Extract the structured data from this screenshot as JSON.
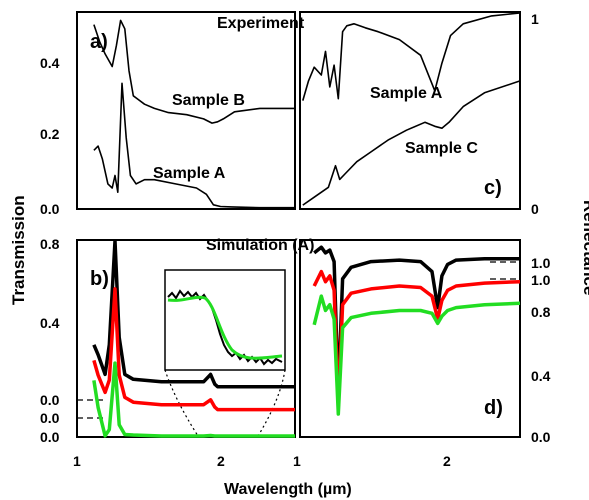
{
  "figure": {
    "ylabel_left": "Transmission",
    "ylabel_right": "Reflectance",
    "xlabel": "Wavelength (µm)",
    "title_top": "Experiment",
    "title_bottom": "Simulation (A)"
  },
  "colors": {
    "black": "#000000",
    "red": "#ff0000",
    "green": "#22dd22"
  },
  "chart_data": [
    {
      "panel": "a)",
      "type": "line",
      "xlabel": "",
      "ylabel": "Transmission",
      "ylim": [
        0,
        0.47
      ],
      "y_ticks": [
        "0.0",
        "0.2",
        "0.4"
      ],
      "series": [
        {
          "name": "Sample B",
          "x": [
            1.12,
            1.16,
            1.2,
            1.25,
            1.28,
            1.31,
            1.34,
            1.37,
            1.4,
            1.44,
            1.48,
            1.55,
            1.65,
            1.78,
            1.9,
            1.96,
            2.0,
            2.04,
            2.12,
            2.3,
            2.55
          ],
          "y": [
            0.44,
            0.4,
            0.37,
            0.34,
            0.39,
            0.45,
            0.43,
            0.33,
            0.27,
            0.26,
            0.25,
            0.24,
            0.23,
            0.225,
            0.215,
            0.205,
            0.208,
            0.215,
            0.232,
            0.24,
            0.24
          ]
        },
        {
          "name": "Sample A",
          "x": [
            1.12,
            1.15,
            1.18,
            1.22,
            1.25,
            1.27,
            1.29,
            1.32,
            1.35,
            1.38,
            1.42,
            1.48,
            1.55,
            1.7,
            1.85,
            1.92,
            1.97,
            2.02,
            2.1,
            2.3,
            2.55
          ],
          "y": [
            0.14,
            0.15,
            0.12,
            0.06,
            0.05,
            0.08,
            0.04,
            0.3,
            0.17,
            0.08,
            0.06,
            0.07,
            0.07,
            0.06,
            0.05,
            0.035,
            0.01,
            0.006,
            0.005,
            0.003,
            0.003
          ]
        }
      ]
    },
    {
      "panel": "c)",
      "type": "line",
      "xlabel": "",
      "ylabel": "Reflectance",
      "ylim": [
        0,
        1
      ],
      "y_ticks": [
        "0",
        "1"
      ],
      "series": [
        {
          "name": "Sample A",
          "x": [
            1.02,
            1.06,
            1.1,
            1.15,
            1.18,
            1.21,
            1.24,
            1.27,
            1.3,
            1.33,
            1.38,
            1.46,
            1.55,
            1.7,
            1.85,
            1.95,
            2.0,
            2.06,
            2.15,
            2.35,
            2.55
          ],
          "y": [
            0.55,
            0.65,
            0.72,
            0.68,
            0.8,
            0.62,
            0.73,
            0.56,
            0.9,
            0.93,
            0.94,
            0.92,
            0.9,
            0.86,
            0.78,
            0.6,
            0.74,
            0.88,
            0.94,
            0.98,
            1.0
          ]
        },
        {
          "name": "Sample C",
          "x": [
            1.02,
            1.1,
            1.2,
            1.25,
            1.28,
            1.32,
            1.4,
            1.5,
            1.62,
            1.75,
            1.88,
            1.95,
            2.0,
            2.05,
            2.15,
            2.3,
            2.55
          ],
          "y": [
            0.02,
            0.06,
            0.11,
            0.22,
            0.15,
            0.18,
            0.24,
            0.29,
            0.35,
            0.4,
            0.44,
            0.42,
            0.41,
            0.44,
            0.52,
            0.59,
            0.65
          ]
        }
      ]
    },
    {
      "panel": "b)",
      "type": "line",
      "xlabel": "Wavelength (µm)",
      "ylabel": "Transmission",
      "x_ticks": [
        "1",
        "2"
      ],
      "y_ticks": [
        "0.8",
        "0.4",
        "0.0",
        "0.0",
        "0.0"
      ],
      "series": [
        {
          "color": "black",
          "x": [
            1.12,
            1.15,
            1.2,
            1.23,
            1.27,
            1.3,
            1.34,
            1.4,
            1.6,
            1.9,
            1.95,
            1.98,
            2.0,
            2.05,
            2.2,
            2.55
          ],
          "y": [
            0.22,
            0.18,
            0.1,
            0.22,
            0.77,
            0.25,
            0.1,
            0.08,
            0.07,
            0.07,
            0.1,
            0.06,
            0.05,
            0.05,
            0.05,
            0.05
          ]
        },
        {
          "color": "red",
          "x": [
            1.12,
            1.15,
            1.2,
            1.23,
            1.27,
            1.3,
            1.34,
            1.4,
            1.6,
            1.9,
            1.95,
            1.98,
            2.0,
            2.05,
            2.2,
            2.55
          ],
          "y": [
            0.23,
            0.17,
            0.1,
            0.15,
            0.52,
            0.17,
            0.08,
            0.06,
            0.05,
            0.05,
            0.07,
            0.04,
            0.03,
            0.03,
            0.03,
            0.03
          ]
        },
        {
          "color": "green",
          "x": [
            1.12,
            1.15,
            1.2,
            1.23,
            1.27,
            1.3,
            1.34,
            1.4,
            1.6,
            1.9,
            1.95,
            1.98,
            2.0,
            2.05,
            2.2,
            2.55
          ],
          "y": [
            0.23,
            0.12,
            0.005,
            0.03,
            0.3,
            0.05,
            0.01,
            0.008,
            0.004,
            0.004,
            0.006,
            0.002,
            0.001,
            0.001,
            0.001,
            0.001
          ]
        }
      ]
    },
    {
      "panel": "d)",
      "type": "line",
      "xlabel": "Wavelength (µm)",
      "ylabel": "Reflectance",
      "x_ticks": [
        "1",
        "2"
      ],
      "y_ticks": [
        "1.0",
        "1.0",
        "0.8",
        "0.4",
        "0.0"
      ],
      "series": [
        {
          "color": "black",
          "x": [
            1.1,
            1.15,
            1.18,
            1.21,
            1.24,
            1.27,
            1.3,
            1.36,
            1.5,
            1.7,
            1.85,
            1.93,
            1.97,
            2.0,
            2.04,
            2.1,
            2.3,
            2.55
          ],
          "y": [
            1.28,
            1.32,
            1.28,
            1.3,
            1.22,
            0.3,
            1.1,
            1.18,
            1.22,
            1.23,
            1.22,
            1.15,
            0.9,
            1.12,
            1.2,
            1.23,
            1.24,
            1.24
          ]
        },
        {
          "color": "red",
          "x": [
            1.1,
            1.15,
            1.18,
            1.21,
            1.24,
            1.27,
            1.3,
            1.36,
            1.5,
            1.7,
            1.85,
            1.93,
            1.97,
            2.0,
            2.04,
            2.1,
            2.3,
            2.55
          ],
          "y": [
            1.05,
            1.15,
            1.08,
            1.12,
            1.02,
            0.22,
            0.92,
            1.0,
            1.03,
            1.05,
            1.04,
            0.98,
            0.82,
            0.95,
            1.02,
            1.05,
            1.07,
            1.08
          ]
        },
        {
          "color": "green",
          "x": [
            1.1,
            1.15,
            1.18,
            1.21,
            1.24,
            1.27,
            1.3,
            1.36,
            1.5,
            1.7,
            1.85,
            1.93,
            1.97,
            2.0,
            2.04,
            2.1,
            2.3,
            2.55
          ],
          "y": [
            0.78,
            0.98,
            0.88,
            0.92,
            0.82,
            0.16,
            0.76,
            0.83,
            0.86,
            0.88,
            0.88,
            0.86,
            0.79,
            0.84,
            0.88,
            0.9,
            0.92,
            0.93
          ]
        }
      ]
    }
  ]
}
